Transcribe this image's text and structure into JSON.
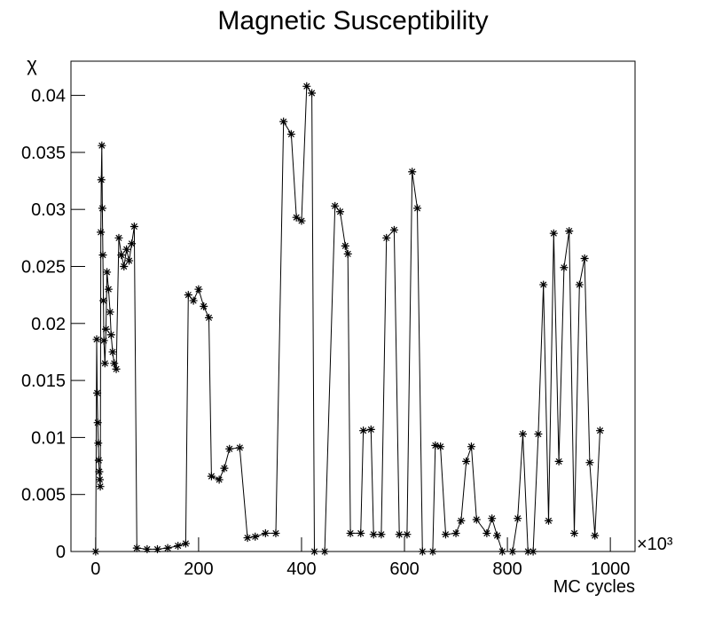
{
  "chart_data": {
    "type": "line",
    "title": "Magnetic Susceptibility",
    "x_label": "MC cycles",
    "y_label": "χ",
    "x_multiplier": "×10³",
    "xlim": [
      -48,
      1048
    ],
    "ylim": [
      0,
      0.043
    ],
    "xticks": [
      0,
      200,
      400,
      600,
      800,
      1000
    ],
    "yticks": [
      0,
      0.005,
      0.01,
      0.015,
      0.02,
      0.025,
      0.03,
      0.035,
      0.04
    ],
    "color": "#000000",
    "marker": "star",
    "x": [
      0,
      2,
      3,
      4,
      5,
      6,
      7,
      8,
      9,
      10,
      11,
      12,
      13,
      14,
      15,
      16,
      18,
      20,
      22,
      25,
      28,
      30,
      33,
      36,
      40,
      45,
      50,
      55,
      60,
      65,
      70,
      75,
      80,
      100,
      120,
      140,
      160,
      175,
      180,
      190,
      200,
      210,
      220,
      225,
      240,
      250,
      260,
      280,
      295,
      310,
      330,
      350,
      365,
      380,
      390,
      400,
      410,
      420,
      425,
      445,
      465,
      475,
      485,
      490,
      495,
      515,
      520,
      535,
      540,
      555,
      565,
      580,
      590,
      605,
      615,
      625,
      635,
      655,
      660,
      670,
      680,
      700,
      710,
      720,
      730,
      740,
      760,
      770,
      780,
      790,
      810,
      820,
      830,
      840,
      850,
      860,
      870,
      880,
      890,
      900,
      910,
      920,
      930,
      940,
      950,
      960,
      970,
      980
    ],
    "values": [
      0,
      0.0186,
      0.0139,
      0.0113,
      0.0095,
      0.008,
      0.007,
      0.0063,
      0.0057,
      0.028,
      0.0326,
      0.0356,
      0.0301,
      0.026,
      0.022,
      0.0185,
      0.0165,
      0.0195,
      0.0245,
      0.023,
      0.021,
      0.019,
      0.0175,
      0.0165,
      0.016,
      0.0275,
      0.026,
      0.025,
      0.0265,
      0.0255,
      0.027,
      0.0285,
      0.0003,
      0.0002,
      0.0002,
      0.0003,
      0.0005,
      0.0007,
      0.0225,
      0.022,
      0.023,
      0.0215,
      0.0205,
      0.0066,
      0.0063,
      0.0073,
      0.009,
      0.0091,
      0.0012,
      0.0013,
      0.0016,
      0.0016,
      0.0377,
      0.0366,
      0.0293,
      0.029,
      0.0408,
      0.0402,
      0,
      0,
      0.0303,
      0.0298,
      0.0268,
      0.0261,
      0.0016,
      0.0016,
      0.0106,
      0.0107,
      0.0015,
      0.0015,
      0.0275,
      0.0282,
      0.0015,
      0.0015,
      0.0333,
      0.0301,
      0,
      0,
      0.0093,
      0.0092,
      0.0015,
      0.0016,
      0.0027,
      0.0079,
      0.0092,
      0.0028,
      0.0016,
      0.0029,
      0.0014,
      0,
      0,
      0.0029,
      0.0103,
      0,
      0,
      0.0103,
      0.0234,
      0.0027,
      0.0279,
      0.0079,
      0.0249,
      0.0281,
      0.0016,
      0.0234,
      0.0257,
      0.0078,
      0.0014,
      0.0106
    ]
  }
}
